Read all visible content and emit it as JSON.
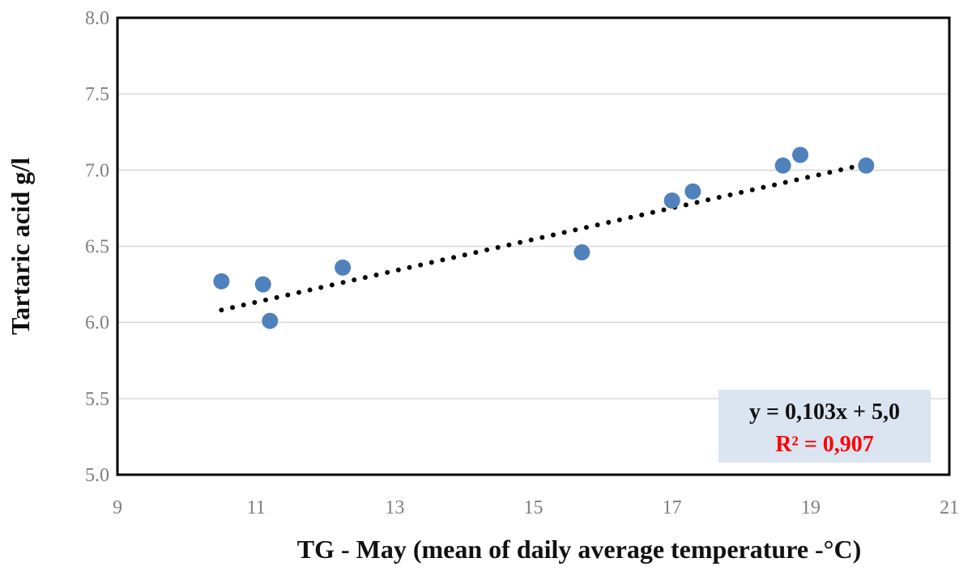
{
  "chart_data": {
    "type": "scatter",
    "title": "",
    "xlabel": "TG - May (mean of daily average temperature -°C)",
    "ylabel": "Tartaric acid g/l",
    "xlim": [
      9,
      21
    ],
    "ylim": [
      5.0,
      8.0
    ],
    "x_ticks": [
      9,
      11,
      13,
      15,
      17,
      19,
      21
    ],
    "y_ticks": [
      "5.0",
      "5.5",
      "6.0",
      "6.5",
      "7.0",
      "7.5",
      "8.0"
    ],
    "grid": "horizontal",
    "marker_color": "#4f81bd",
    "series": [
      {
        "x": [
          10.5,
          11.1,
          11.2,
          12.25,
          15.7,
          17.0,
          17.3,
          18.6,
          18.85,
          19.8
        ],
        "y": [
          6.27,
          6.25,
          6.01,
          6.36,
          6.46,
          6.8,
          6.86,
          7.03,
          7.1,
          7.03
        ]
      }
    ],
    "trendline": {
      "style": "dotted",
      "color": "#000000",
      "slope": 0.103,
      "intercept": 5.0,
      "x_range": [
        10.5,
        19.8
      ],
      "equation": "y = 0,103x + 5,0",
      "r2_label": "R² = 0,907",
      "r2_color": "#ff0000",
      "box_color": "#dbe5f1"
    }
  }
}
